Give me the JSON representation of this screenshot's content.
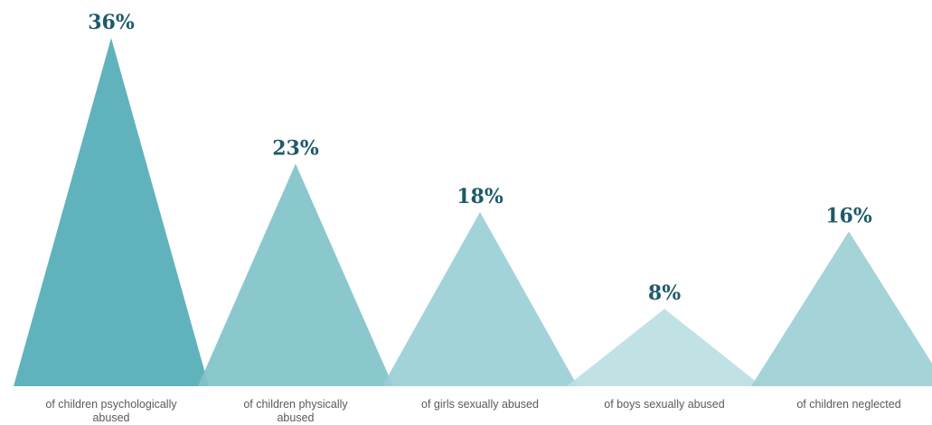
{
  "chart_data": {
    "type": "bar",
    "title": "",
    "xlabel": "",
    "ylabel": "",
    "unit": "%",
    "ylim": [
      0,
      36
    ],
    "grid": false,
    "categories": [
      "of children psychologically abused",
      "of children physically abused",
      "of girls sexually abused",
      "of boys sexually abused",
      "of children neglected"
    ],
    "values": [
      36,
      23,
      18,
      8,
      16
    ],
    "value_labels": [
      "36%",
      "23%",
      "18%",
      "8%",
      "16%"
    ],
    "colors": [
      "#53adb6",
      "#81c3ca",
      "#9acfd5",
      "#bcdfe3",
      "#9ccfd5"
    ],
    "label_color": "#1f5a6b",
    "shape": "triangle"
  }
}
